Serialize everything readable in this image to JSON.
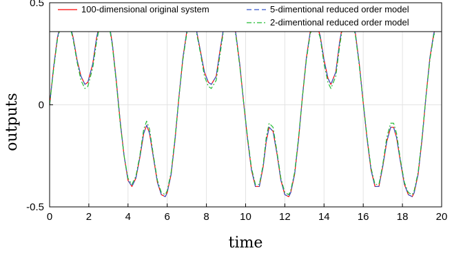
{
  "chart_data": {
    "type": "line",
    "xlabel": "time",
    "ylabel": "outputs",
    "xlim": [
      0,
      20
    ],
    "ylim": [
      -0.5,
      0.5
    ],
    "x_ticks": [
      0,
      2,
      4,
      6,
      8,
      10,
      12,
      14,
      16,
      18,
      20
    ],
    "y_ticks": [
      -0.5,
      0,
      0.5
    ],
    "y_tick_labels": [
      "-0.5",
      "0",
      "0.5"
    ],
    "grid": true,
    "legend_position": "top",
    "series": [
      {
        "name": "100-dimensional original system",
        "color": "#ff0000",
        "dash": "solid",
        "x": [
          0,
          0.2,
          0.4,
          0.6,
          0.8,
          0.9,
          1.0,
          1.2,
          1.4,
          1.6,
          1.8,
          1.95,
          2.2,
          2.4,
          2.6,
          2.8,
          3.0,
          3.2,
          3.4,
          3.6,
          3.8,
          4.0,
          4.2,
          4.4,
          4.6,
          4.8,
          4.95,
          5.1,
          5.3,
          5.5,
          5.7,
          5.9,
          6.0,
          6.2,
          6.4,
          6.6,
          6.8,
          7.0,
          7.2,
          7.3,
          7.5,
          7.7,
          7.9,
          8.1,
          8.25,
          8.5,
          8.7,
          8.9,
          9.1,
          9.3,
          9.5,
          9.7,
          9.9,
          10.1,
          10.3,
          10.5,
          10.7,
          10.9,
          11.05,
          11.2,
          11.4,
          11.6,
          11.8,
          12.0,
          12.2,
          12.3,
          12.5,
          12.7,
          12.9,
          13.1,
          13.3,
          13.5,
          13.6,
          13.8,
          14.0,
          14.2,
          14.35,
          14.6,
          14.8,
          15.0,
          15.2,
          15.4,
          15.6,
          15.8,
          16.0,
          16.2,
          16.4,
          16.6,
          16.8,
          17.0,
          17.2,
          17.4,
          17.55,
          17.7,
          17.9,
          18.1,
          18.3,
          18.5,
          18.6,
          18.8,
          19.0,
          19.2,
          19.4,
          19.6,
          19.8,
          20.0
        ],
        "y": [
          0,
          0.18,
          0.33,
          0.41,
          0.43,
          0.43,
          0.41,
          0.33,
          0.22,
          0.14,
          0.1,
          0.11,
          0.2,
          0.33,
          0.42,
          0.45,
          0.42,
          0.3,
          0.12,
          -0.08,
          -0.25,
          -0.37,
          -0.4,
          -0.36,
          -0.26,
          -0.14,
          -0.1,
          -0.14,
          -0.26,
          -0.38,
          -0.44,
          -0.45,
          -0.43,
          -0.34,
          -0.17,
          0.04,
          0.23,
          0.36,
          0.4,
          0.4,
          0.36,
          0.26,
          0.16,
          0.11,
          0.1,
          0.14,
          0.27,
          0.39,
          0.45,
          0.43,
          0.35,
          0.2,
          0.01,
          -0.17,
          -0.32,
          -0.4,
          -0.4,
          -0.3,
          -0.18,
          -0.11,
          -0.13,
          -0.24,
          -0.37,
          -0.44,
          -0.45,
          -0.43,
          -0.34,
          -0.17,
          0.04,
          0.23,
          0.36,
          0.4,
          0.4,
          0.34,
          0.22,
          0.13,
          0.1,
          0.16,
          0.31,
          0.42,
          0.45,
          0.43,
          0.35,
          0.2,
          0.01,
          -0.17,
          -0.32,
          -0.4,
          -0.4,
          -0.3,
          -0.18,
          -0.11,
          -0.11,
          -0.16,
          -0.28,
          -0.39,
          -0.44,
          -0.45,
          -0.43,
          -0.34,
          -0.17,
          0.04,
          0.23,
          0.35,
          0.4,
          0.37
        ]
      },
      {
        "name": "5-dimentional reduced order model",
        "color": "#3355cc",
        "dash": "dashed",
        "x": [
          0,
          0.2,
          0.4,
          0.6,
          0.8,
          0.9,
          1.0,
          1.2,
          1.4,
          1.6,
          1.8,
          1.95,
          2.2,
          2.4,
          2.6,
          2.8,
          3.0,
          3.2,
          3.4,
          3.6,
          3.8,
          4.0,
          4.2,
          4.4,
          4.6,
          4.8,
          4.95,
          5.1,
          5.3,
          5.5,
          5.7,
          5.9,
          6.0,
          6.2,
          6.4,
          6.6,
          6.8,
          7.0,
          7.2,
          7.3,
          7.5,
          7.7,
          7.9,
          8.1,
          8.25,
          8.5,
          8.7,
          8.9,
          9.1,
          9.3,
          9.5,
          9.7,
          9.9,
          10.1,
          10.3,
          10.5,
          10.7,
          10.9,
          11.05,
          11.2,
          11.4,
          11.6,
          11.8,
          12.0,
          12.2,
          12.3,
          12.5,
          12.7,
          12.9,
          13.1,
          13.3,
          13.5,
          13.6,
          13.8,
          14.0,
          14.2,
          14.35,
          14.6,
          14.8,
          15.0,
          15.2,
          15.4,
          15.6,
          15.8,
          16.0,
          16.2,
          16.4,
          16.6,
          16.8,
          17.0,
          17.2,
          17.4,
          17.55,
          17.7,
          17.9,
          18.1,
          18.3,
          18.5,
          18.6,
          18.8,
          19.0,
          19.2,
          19.4,
          19.6,
          19.8,
          20.0
        ],
        "y": [
          0,
          0.18,
          0.33,
          0.41,
          0.43,
          0.43,
          0.41,
          0.33,
          0.22,
          0.14,
          0.1,
          0.11,
          0.2,
          0.33,
          0.42,
          0.45,
          0.42,
          0.3,
          0.12,
          -0.08,
          -0.25,
          -0.37,
          -0.4,
          -0.36,
          -0.26,
          -0.14,
          -0.1,
          -0.14,
          -0.26,
          -0.38,
          -0.44,
          -0.45,
          -0.43,
          -0.34,
          -0.17,
          0.04,
          0.23,
          0.36,
          0.4,
          0.4,
          0.36,
          0.26,
          0.16,
          0.11,
          0.1,
          0.14,
          0.27,
          0.39,
          0.45,
          0.43,
          0.35,
          0.2,
          0.01,
          -0.17,
          -0.32,
          -0.4,
          -0.4,
          -0.3,
          -0.18,
          -0.11,
          -0.13,
          -0.24,
          -0.37,
          -0.44,
          -0.45,
          -0.43,
          -0.34,
          -0.17,
          0.04,
          0.23,
          0.36,
          0.4,
          0.4,
          0.34,
          0.22,
          0.13,
          0.1,
          0.16,
          0.31,
          0.42,
          0.45,
          0.43,
          0.35,
          0.2,
          0.01,
          -0.17,
          -0.32,
          -0.4,
          -0.4,
          -0.3,
          -0.18,
          -0.11,
          -0.11,
          -0.16,
          -0.28,
          -0.39,
          -0.44,
          -0.45,
          -0.43,
          -0.34,
          -0.17,
          0.04,
          0.23,
          0.35,
          0.4,
          0.37
        ]
      },
      {
        "name": "2-dimentional reduced order model",
        "color": "#22bb33",
        "dash": "dashdot",
        "x": [
          0,
          0.2,
          0.4,
          0.6,
          0.8,
          0.9,
          1.0,
          1.2,
          1.4,
          1.6,
          1.8,
          1.95,
          2.2,
          2.4,
          2.6,
          2.8,
          3.0,
          3.2,
          3.4,
          3.6,
          3.8,
          4.0,
          4.2,
          4.4,
          4.6,
          4.8,
          4.95,
          5.1,
          5.3,
          5.5,
          5.7,
          5.9,
          6.0,
          6.2,
          6.4,
          6.6,
          6.8,
          7.0,
          7.2,
          7.3,
          7.5,
          7.7,
          7.9,
          8.1,
          8.25,
          8.5,
          8.7,
          8.9,
          9.1,
          9.3,
          9.5,
          9.7,
          9.9,
          10.1,
          10.3,
          10.5,
          10.7,
          10.9,
          11.05,
          11.2,
          11.4,
          11.6,
          11.8,
          12.0,
          12.2,
          12.3,
          12.5,
          12.7,
          12.9,
          13.1,
          13.3,
          13.5,
          13.6,
          13.8,
          14.0,
          14.2,
          14.35,
          14.6,
          14.8,
          15.0,
          15.2,
          15.4,
          15.6,
          15.8,
          16.0,
          16.2,
          16.4,
          16.6,
          16.8,
          17.0,
          17.2,
          17.4,
          17.55,
          17.7,
          17.9,
          18.1,
          18.3,
          18.5,
          18.6,
          18.8,
          19.0,
          19.2,
          19.4,
          19.6,
          19.8,
          20.0
        ],
        "y": [
          0,
          0.17,
          0.32,
          0.4,
          0.42,
          0.42,
          0.4,
          0.32,
          0.21,
          0.12,
          0.08,
          0.09,
          0.18,
          0.31,
          0.41,
          0.44,
          0.41,
          0.29,
          0.11,
          -0.09,
          -0.25,
          -0.36,
          -0.39,
          -0.35,
          -0.25,
          -0.12,
          -0.08,
          -0.12,
          -0.25,
          -0.37,
          -0.43,
          -0.44,
          -0.42,
          -0.33,
          -0.16,
          0.04,
          0.22,
          0.35,
          0.39,
          0.39,
          0.35,
          0.25,
          0.14,
          0.09,
          0.08,
          0.12,
          0.25,
          0.38,
          0.44,
          0.42,
          0.34,
          0.19,
          0.01,
          -0.16,
          -0.31,
          -0.39,
          -0.39,
          -0.29,
          -0.16,
          -0.09,
          -0.11,
          -0.23,
          -0.36,
          -0.43,
          -0.44,
          -0.42,
          -0.33,
          -0.16,
          0.04,
          0.22,
          0.35,
          0.39,
          0.39,
          0.33,
          0.2,
          0.11,
          0.08,
          0.14,
          0.29,
          0.41,
          0.44,
          0.42,
          0.34,
          0.19,
          0.01,
          -0.16,
          -0.31,
          -0.39,
          -0.39,
          -0.29,
          -0.16,
          -0.09,
          -0.09,
          -0.14,
          -0.27,
          -0.38,
          -0.43,
          -0.44,
          -0.42,
          -0.33,
          -0.16,
          0.04,
          0.22,
          0.34,
          0.39,
          0.36
        ]
      }
    ]
  }
}
